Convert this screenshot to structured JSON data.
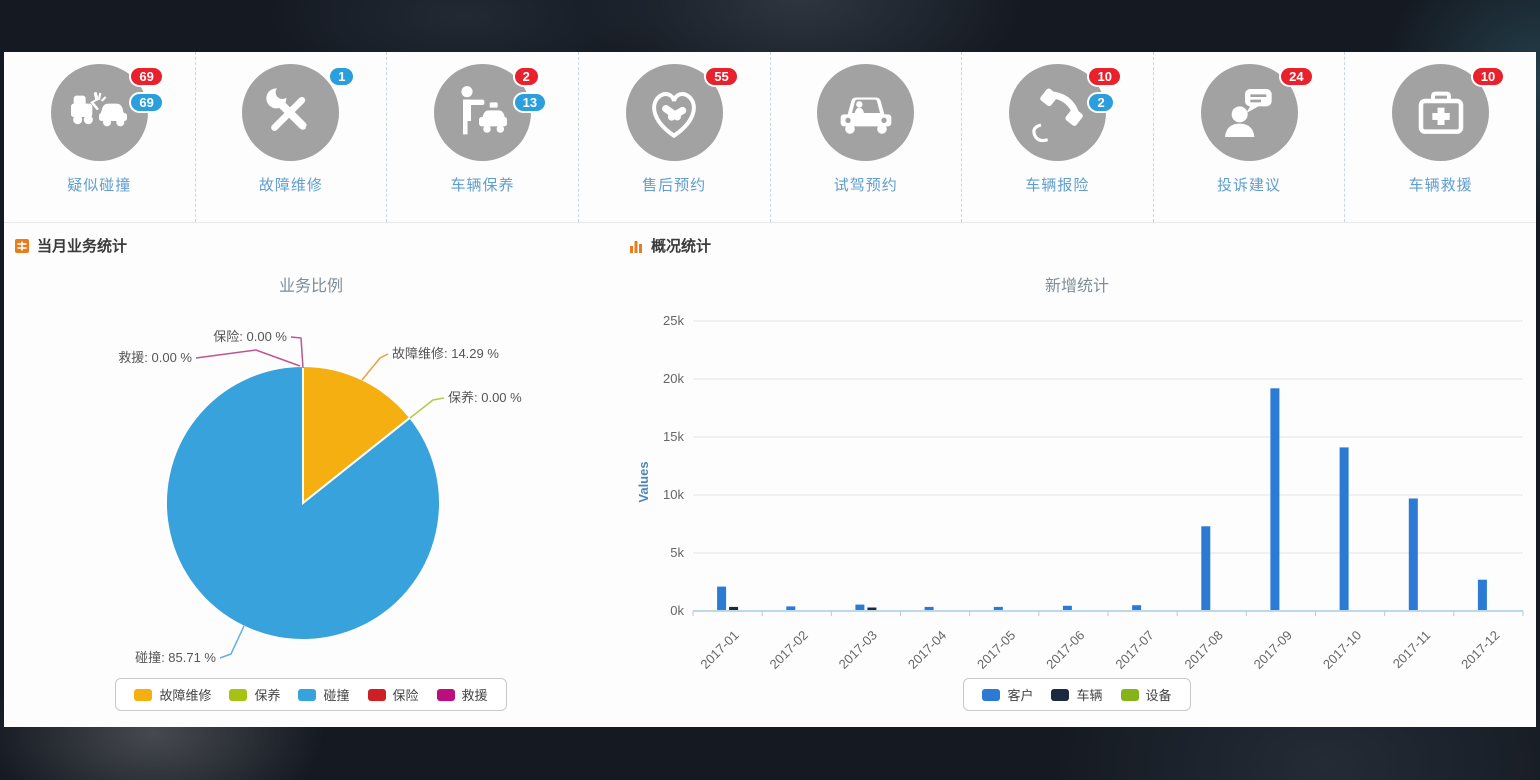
{
  "icon_band": {
    "items": [
      {
        "label": "疑似碰撞",
        "icon": "car-crash-icon",
        "badges": [
          {
            "color": "red",
            "value": "69"
          },
          {
            "color": "blue",
            "value": "69"
          }
        ]
      },
      {
        "label": "故障维修",
        "icon": "repair-tools-icon",
        "badges": [
          {
            "color": "blue",
            "value": "1"
          }
        ]
      },
      {
        "label": "车辆保养",
        "icon": "person-taxi-icon",
        "badges": [
          {
            "color": "red",
            "value": "2"
          },
          {
            "color": "blue",
            "value": "13"
          }
        ]
      },
      {
        "label": "售后预约",
        "icon": "handshake-heart-icon",
        "badges": [
          {
            "color": "red",
            "value": "55"
          }
        ]
      },
      {
        "label": "试驾预约",
        "icon": "car-driver-icon",
        "badges": []
      },
      {
        "label": "车辆报险",
        "icon": "phone-handset-icon",
        "badges": [
          {
            "color": "red",
            "value": "10"
          },
          {
            "color": "blue",
            "value": "2"
          }
        ]
      },
      {
        "label": "投诉建议",
        "icon": "complaint-bubble-icon",
        "badges": [
          {
            "color": "red",
            "value": "24"
          }
        ]
      },
      {
        "label": "车辆救援",
        "icon": "first-aid-kit-icon",
        "badges": [
          {
            "color": "red",
            "value": "10"
          }
        ]
      }
    ]
  },
  "left_panel": {
    "header": "当月业务统计"
  },
  "right_panel": {
    "header": "概况统计"
  },
  "colors": {
    "badge_red": "#e8212d",
    "badge_blue": "#2b9edd",
    "icon_circle_gray": "#a2a2a2",
    "header_orange": "#e87c1e",
    "service_label_blue": "#5f9ecf"
  },
  "chart_data": [
    {
      "type": "pie",
      "title": "业务比例",
      "labels": [
        "故障维修",
        "保养",
        "碰撞",
        "保险",
        "救援"
      ],
      "values": [
        14.29,
        0,
        85.71,
        0,
        0
      ],
      "colors": [
        "#f5af10",
        "#a6c313",
        "#38a2dc",
        "#cc2025",
        "#be0d7e"
      ],
      "callouts": [
        {
          "text": "保险: 0.00 %"
        },
        {
          "text": "救援: 0.00 %"
        },
        {
          "text": "故障维修: 14.29 %"
        },
        {
          "text": "保养: 0.00 %"
        },
        {
          "text": "碰撞: 85.71 %"
        }
      ],
      "legend_position": "bottom"
    },
    {
      "type": "bar",
      "title": "新增统计",
      "categories": [
        "2017-01",
        "2017-02",
        "2017-03",
        "2017-04",
        "2017-05",
        "2017-06",
        "2017-07",
        "2017-08",
        "2017-09",
        "2017-10",
        "2017-11",
        "2017-12"
      ],
      "series": [
        {
          "name": "客户",
          "color": "#2b7bd5",
          "values": [
            2100,
            400,
            550,
            350,
            350,
            450,
            500,
            7300,
            19200,
            14100,
            9700,
            2700
          ]
        },
        {
          "name": "车辆",
          "color": "#1b2a3e",
          "values": [
            350,
            0,
            300,
            0,
            0,
            0,
            0,
            0,
            0,
            0,
            0,
            0
          ]
        },
        {
          "name": "设备",
          "color": "#85b31c",
          "values": [
            0,
            0,
            0,
            0,
            0,
            0,
            0,
            0,
            0,
            0,
            0,
            0
          ]
        }
      ],
      "ylabel": "Values",
      "yticks": [
        "0k",
        "5k",
        "10k",
        "15k",
        "20k",
        "25k"
      ],
      "ylim": [
        0,
        25000
      ],
      "grid": true,
      "legend_position": "bottom"
    }
  ]
}
